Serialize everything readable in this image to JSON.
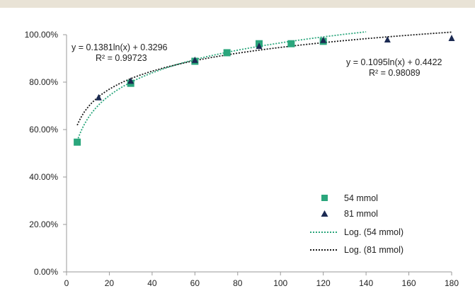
{
  "chart_data": {
    "type": "scatter",
    "title": "",
    "xlabel": "",
    "ylabel": "",
    "xlim": [
      0,
      180
    ],
    "ylim": [
      0,
      1.0
    ],
    "xticks": [
      0,
      20,
      40,
      60,
      80,
      100,
      120,
      140,
      160,
      180
    ],
    "yticks": [
      0,
      0.2,
      0.4,
      0.6,
      0.8,
      1.0
    ],
    "ytick_labels": [
      "0.00%",
      "20.00%",
      "40.00%",
      "60.00%",
      "80.00%",
      "100.00%"
    ],
    "grid": false,
    "legend_position": "bottom-right",
    "colors": {
      "band": "#e9e3d6",
      "axis": "#9a9a9a",
      "series_54": "#2aa67c",
      "series_81": "#1b2a52"
    },
    "series": [
      {
        "name": "54 mmol",
        "marker": "square",
        "x": [
          5,
          30,
          60,
          75,
          90,
          105,
          120
        ],
        "y": [
          0.547,
          0.795,
          0.888,
          0.924,
          0.962,
          0.962,
          0.972
        ]
      },
      {
        "name": "81 mmol",
        "marker": "triangle",
        "x": [
          15,
          30,
          60,
          90,
          120,
          150,
          180
        ],
        "y": [
          0.735,
          0.805,
          0.893,
          0.952,
          0.977,
          0.979,
          0.985
        ]
      }
    ],
    "trendlines": [
      {
        "name": "Log. (54 mmol)",
        "type": "logarithmic",
        "a": 0.1381,
        "b": 0.3296,
        "x_range": [
          5,
          140
        ],
        "equation": "y = 0.1381ln(x) + 0.3296",
        "r2": "R² = 0.99723"
      },
      {
        "name": "Log. (81 mmol)",
        "type": "logarithmic",
        "a": 0.1095,
        "b": 0.4422,
        "x_range": [
          5,
          180
        ],
        "equation": "y = 0.1095ln(x) + 0.4422",
        "r2": "R² = 0.98089"
      }
    ]
  }
}
